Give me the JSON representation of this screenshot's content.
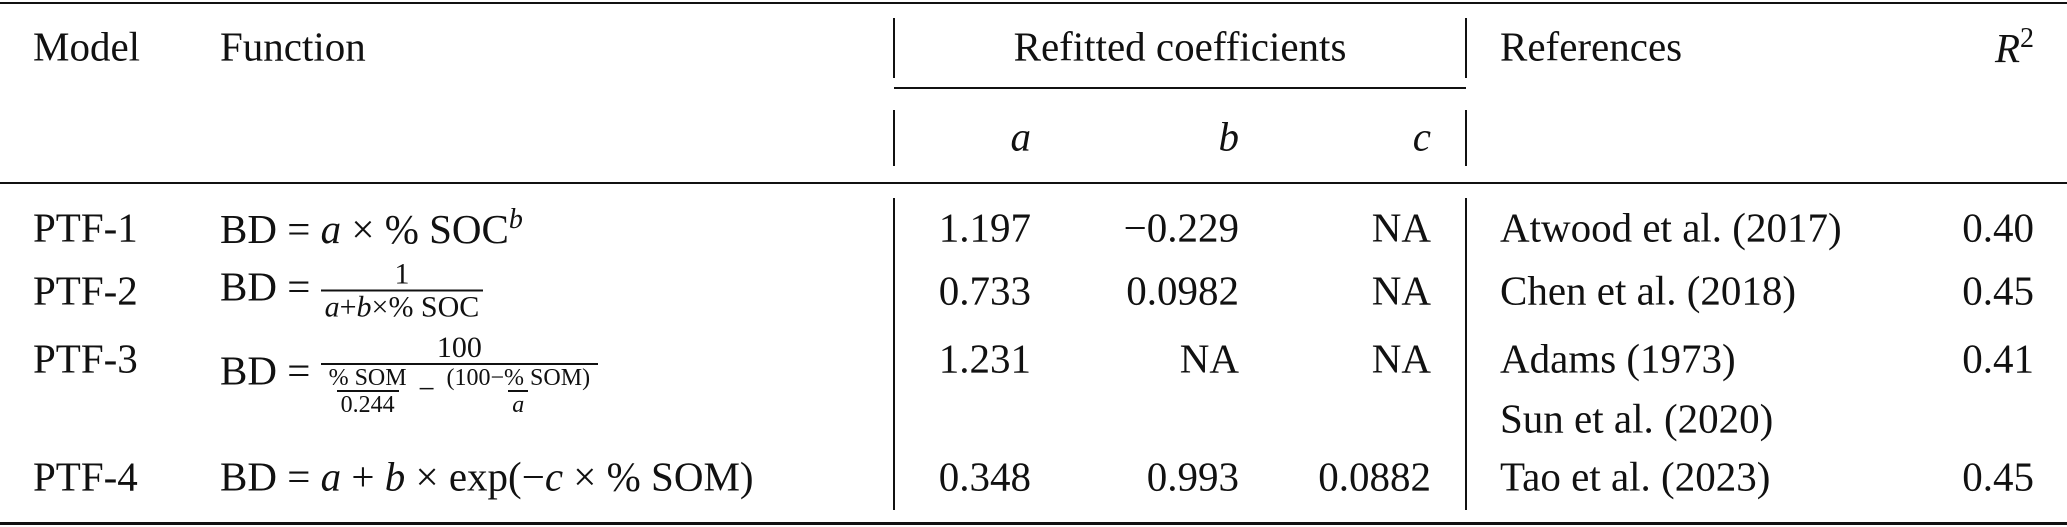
{
  "table": {
    "header": {
      "model": "Model",
      "function": "Function",
      "coefficients": "Refitted coefficients",
      "references": "References",
      "r2": {
        "base": "R",
        "sup": "2"
      }
    },
    "subheader": [
      "a",
      "b",
      "c"
    ],
    "rows": [
      {
        "model": "PTF-1",
        "function": [
          "BD",
          "=",
          "a",
          "×",
          "% SOC",
          "b"
        ],
        "a": "1.197",
        "b": "−0.229",
        "c": "NA",
        "references": [
          "Atwood et al. (2017)"
        ],
        "r2": "0.40"
      },
      {
        "model": "PTF-2",
        "function": [
          "BD",
          "=",
          "1",
          "a",
          "+",
          "b",
          "×",
          "% SOC"
        ],
        "a": "0.733",
        "b": "0.0982",
        "c": "NA",
        "references": [
          "Chen et al. (2018)"
        ],
        "r2": "0.45"
      },
      {
        "model": "PTF-3",
        "function": [
          "BD",
          "=",
          "100",
          "% SOM",
          "0.244",
          "−",
          "(100−% SOM)",
          "a"
        ],
        "a": "1.231",
        "b": "NA",
        "c": "NA",
        "references": [
          "Adams (1973)",
          "Sun et al. (2020)"
        ],
        "r2": "0.41"
      },
      {
        "model": "PTF-4",
        "function": [
          "BD",
          "=",
          "a",
          "+",
          "b",
          "×",
          "exp(−",
          "c",
          "×",
          "% SOM)"
        ],
        "a": "0.348",
        "b": "0.993",
        "c": "0.0882",
        "references": [
          "Tao et al. (2023)"
        ],
        "r2": "0.45"
      }
    ]
  }
}
